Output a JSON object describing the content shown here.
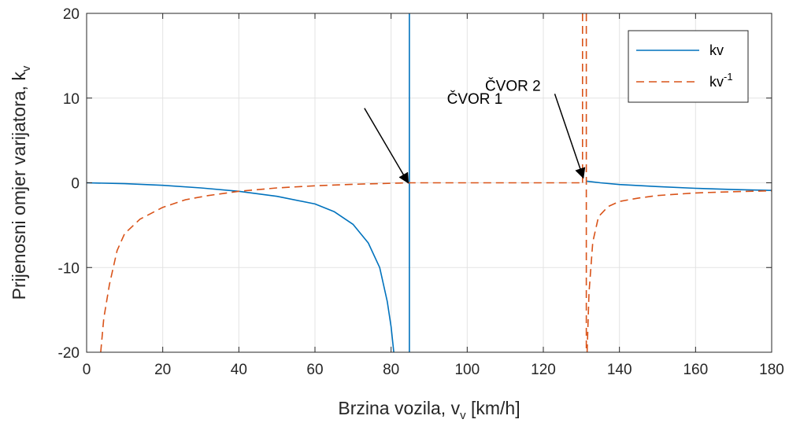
{
  "chart_data": {
    "type": "line",
    "title": "",
    "xlabel": "Brzina vozila, v",
    "xlabel_sub": "v",
    "xlabel_unit": " [km/h]",
    "ylabel": "Prijenosni omjer varijatora, k",
    "ylabel_sub": "v",
    "xlim": [
      0,
      180
    ],
    "ylim": [
      -20,
      20
    ],
    "xticks": [
      0,
      20,
      40,
      60,
      80,
      100,
      120,
      140,
      160,
      180
    ],
    "yticks": [
      -20,
      -10,
      0,
      10,
      20
    ],
    "xtick_labels": [
      "0",
      "20",
      "40",
      "60",
      "80",
      "100",
      "120",
      "140",
      "160",
      "180"
    ],
    "ytick_labels": [
      "-20",
      "-10",
      "0",
      "10",
      "20"
    ],
    "grid": true,
    "legend_position": "top-right",
    "legend": [
      {
        "label": "kv",
        "sup": ""
      },
      {
        "label": "kv",
        "sup": "-1"
      }
    ],
    "series": [
      {
        "name": "kv",
        "color": "#0072bd",
        "dash": "solid",
        "segments": [
          [
            [
              0,
              0
            ],
            [
              10,
              -0.1
            ],
            [
              20,
              -0.3
            ],
            [
              30,
              -0.6
            ],
            [
              40,
              -1.0
            ],
            [
              50,
              -1.6
            ],
            [
              60,
              -2.5
            ],
            [
              65,
              -3.4
            ],
            [
              70,
              -4.9
            ],
            [
              74,
              -7.1
            ],
            [
              77,
              -10.0
            ],
            [
              79,
              -14.0
            ],
            [
              80,
              -17.0
            ],
            [
              80.7,
              -20.0
            ]
          ],
          [
            [
              84.8,
              20.0
            ],
            [
              84.8,
              -20.0
            ]
          ],
          [
            [
              131.2,
              0.2
            ],
            [
              135,
              0.0
            ],
            [
              140,
              -0.2
            ],
            [
              150,
              -0.45
            ],
            [
              160,
              -0.65
            ],
            [
              170,
              -0.8
            ],
            [
              180,
              -0.9
            ]
          ]
        ]
      },
      {
        "name": "kv-1",
        "color": "#d95319",
        "dash": "dashed",
        "segments": [
          [
            [
              3.7,
              -20.0
            ],
            [
              4.5,
              -16.0
            ],
            [
              6,
              -12.0
            ],
            [
              8,
              -8.0
            ],
            [
              10,
              -6.0
            ],
            [
              14,
              -4.3
            ],
            [
              20,
              -2.9
            ],
            [
              26,
              -2.0
            ],
            [
              32,
              -1.5
            ],
            [
              40,
              -1.0
            ],
            [
              50,
              -0.6
            ],
            [
              60,
              -0.35
            ],
            [
              70,
              -0.18
            ],
            [
              80,
              -0.06
            ],
            [
              84.8,
              0.0
            ],
            [
              100,
              0.0
            ],
            [
              120,
              0.0
            ],
            [
              130,
              0.0
            ]
          ],
          [
            [
              130.3,
              20.0
            ],
            [
              130.3,
              0.0
            ]
          ],
          [
            [
              131.3,
              20.0
            ],
            [
              131.3,
              -20.0
            ]
          ],
          [
            [
              131.5,
              -20.0
            ],
            [
              132,
              -13.0
            ],
            [
              133,
              -7.0
            ],
            [
              134.5,
              -4.0
            ],
            [
              137,
              -2.8
            ],
            [
              140,
              -2.2
            ],
            [
              145,
              -1.8
            ],
            [
              150,
              -1.5
            ],
            [
              160,
              -1.2
            ],
            [
              170,
              -1.05
            ],
            [
              180,
              -0.95
            ]
          ]
        ]
      }
    ],
    "annotations": [
      {
        "text": "ČVOR 1",
        "text_at": [
          102,
          10
        ],
        "arrow_from": [
          73,
          8.8
        ],
        "arrow_to": [
          84.5,
          0
        ]
      },
      {
        "text": "ČVOR 2",
        "text_at": [
          112,
          11.5
        ],
        "arrow_from": [
          123,
          10.5
        ],
        "arrow_to": [
          130.5,
          0.6
        ]
      }
    ]
  }
}
